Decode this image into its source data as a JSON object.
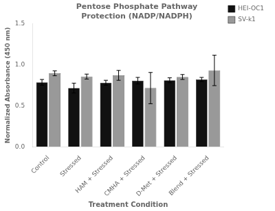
{
  "chart_data": {
    "type": "bar",
    "title": "Pentose Phosphate Pathway\nProtection (NADP/NADPH)",
    "x_label": "Treatment Condition",
    "y_label": "Normalized Absorbance (450 nm)",
    "categories": [
      "Control",
      "Stressed",
      "HAM + Stressed",
      "CMHA + Stressed",
      "D-Met + Stressed",
      "Blend + Stressed"
    ],
    "series": [
      {
        "name": "HEI-OC1",
        "color": "#111111",
        "values": [
          0.785,
          0.715,
          0.78,
          0.805,
          0.81,
          0.82
        ],
        "errors": [
          0.035,
          0.06,
          0.03,
          0.04,
          0.03,
          0.025
        ]
      },
      {
        "name": "SV-k1",
        "color": "#999999",
        "values": [
          0.895,
          0.855,
          0.87,
          0.715,
          0.85,
          0.93
        ],
        "errors": [
          0.03,
          0.03,
          0.06,
          0.19,
          0.03,
          0.185
        ]
      }
    ],
    "ylim": [
      0.0,
      1.5
    ],
    "yticks": [
      {
        "value": 0,
        "label": "0.0"
      },
      0.5,
      {
        "value": 1,
        "label": "1.0"
      },
      1.5
    ],
    "grid": false,
    "legend": "upper right"
  }
}
